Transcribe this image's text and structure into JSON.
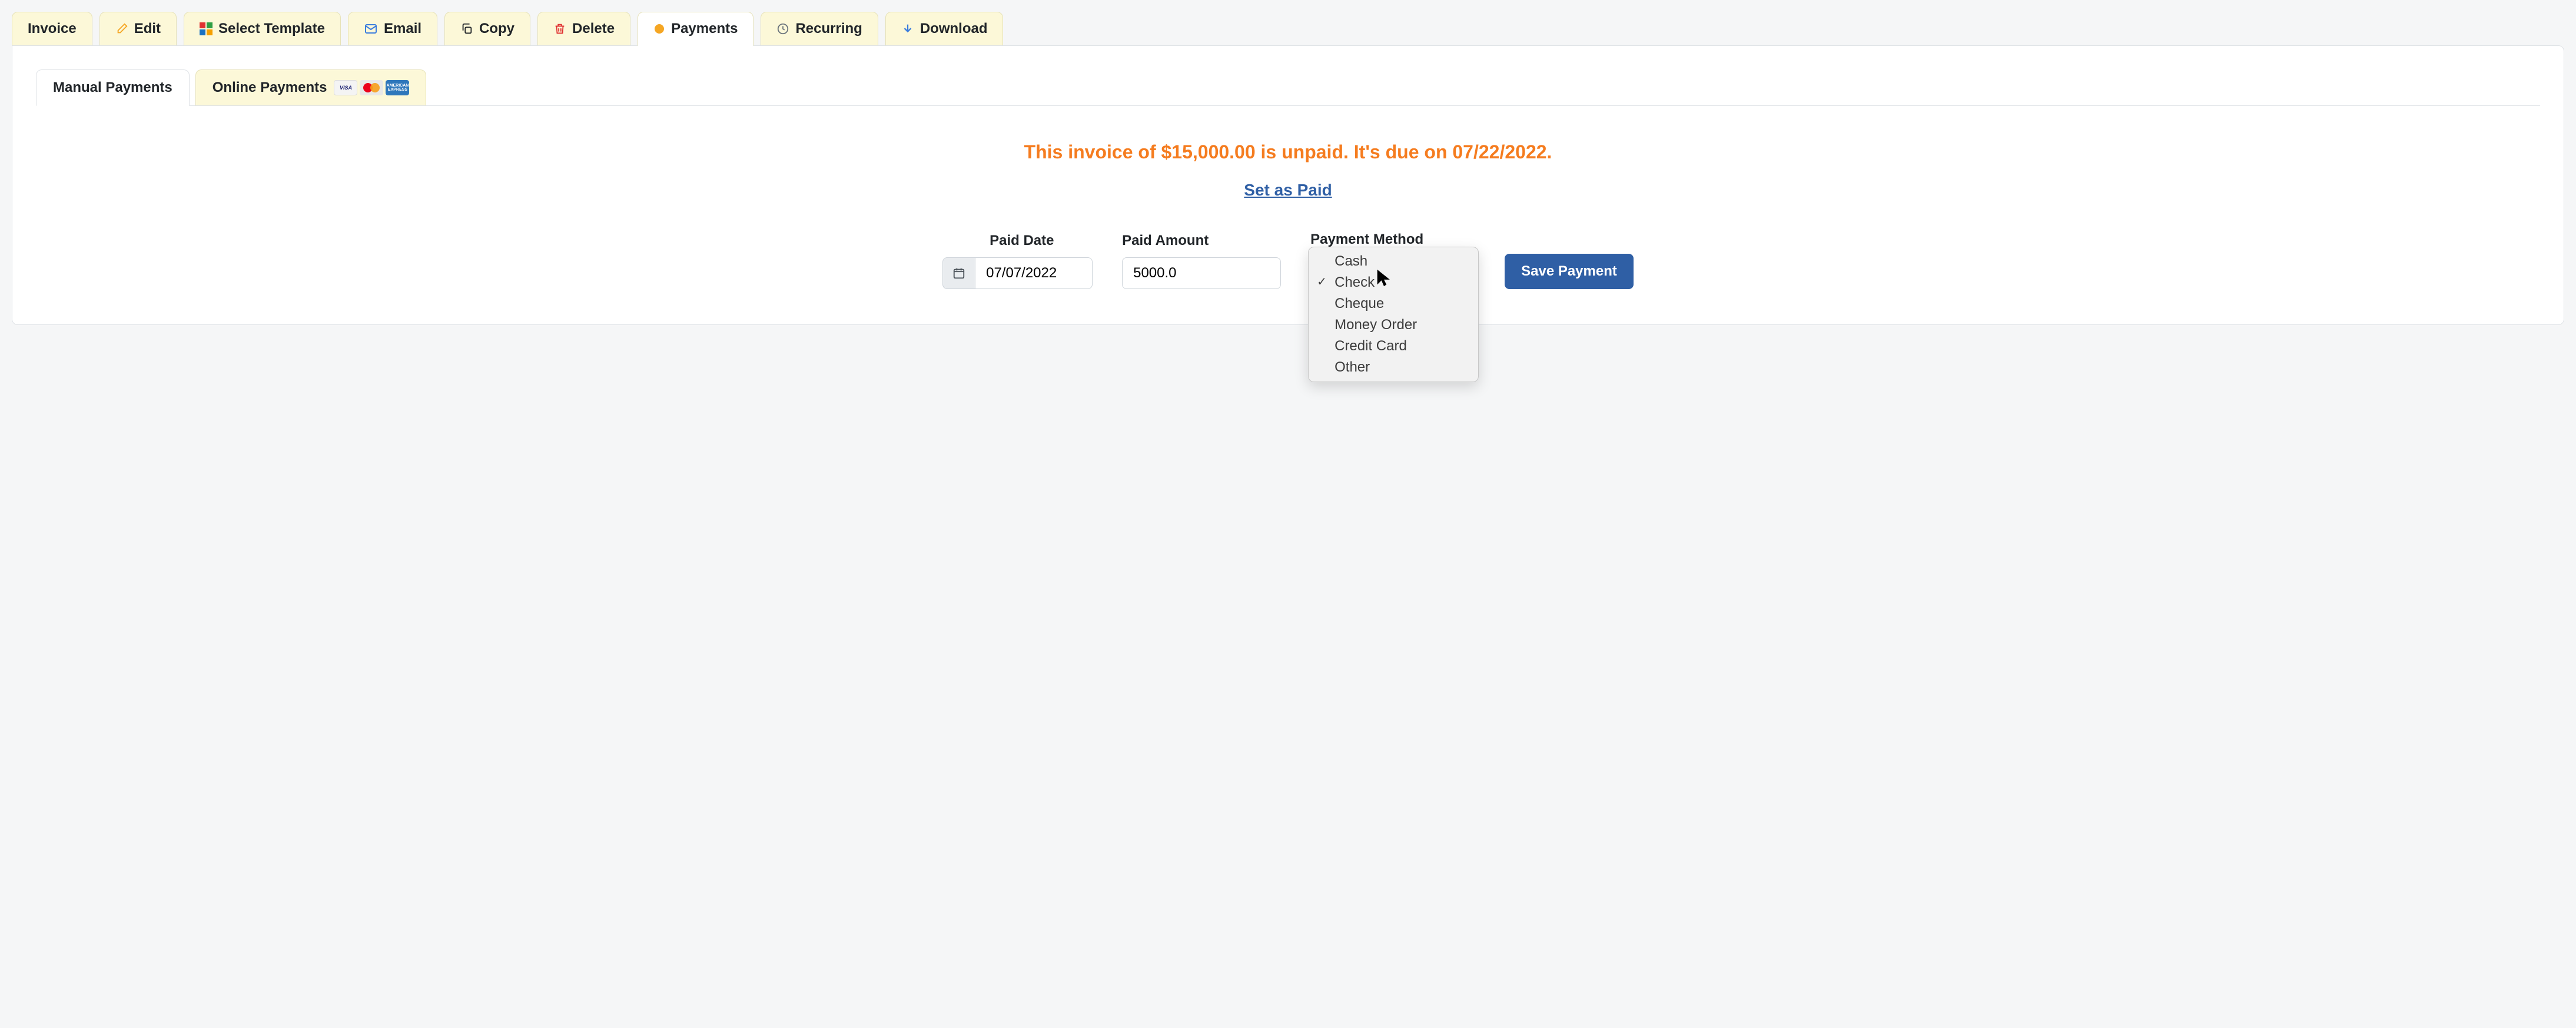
{
  "colors": {
    "tab_bg": "#fcf8d8",
    "tab_border": "#e6e2b8",
    "panel_bg": "#ffffff",
    "panel_border": "#dee2e6",
    "status_text": "#f57c1f",
    "link": "#2f5fa5",
    "primary_btn": "#2f5fa5",
    "dropdown_bg": "#f2f2f2",
    "edit_icon": "#f5a623",
    "email_icon": "#3b7ddd",
    "delete_icon": "#e03131",
    "payments_dot": "#f5a623",
    "recurring_icon": "#6c757d",
    "download_icon": "#3b7ddd",
    "template_colors": [
      "#e03131",
      "#2f9e44",
      "#1971c2",
      "#f59f00"
    ]
  },
  "tabs": {
    "invoice": "Invoice",
    "edit": "Edit",
    "select_template": "Select Template",
    "email": "Email",
    "copy": "Copy",
    "delete": "Delete",
    "payments": "Payments",
    "recurring": "Recurring",
    "download": "Download"
  },
  "subtabs": {
    "manual": "Manual Payments",
    "online": "Online Payments"
  },
  "card_brands": {
    "visa": "VISA",
    "amex": "AMERICAN EXPRESS"
  },
  "status": "This invoice of $15,000.00 is unpaid. It's due on 07/22/2022.",
  "set_paid": "Set as Paid",
  "form": {
    "paid_date_label": "Paid Date",
    "paid_date_value": "07/07/2022",
    "paid_amount_label": "Paid Amount",
    "paid_amount_value": "5000.0",
    "payment_method_label": "Payment Method",
    "save_button": "Save Payment"
  },
  "payment_methods": {
    "options": [
      "Cash",
      "Check",
      "Cheque",
      "Money Order",
      "Credit Card",
      "Other"
    ],
    "selected": "Check"
  }
}
